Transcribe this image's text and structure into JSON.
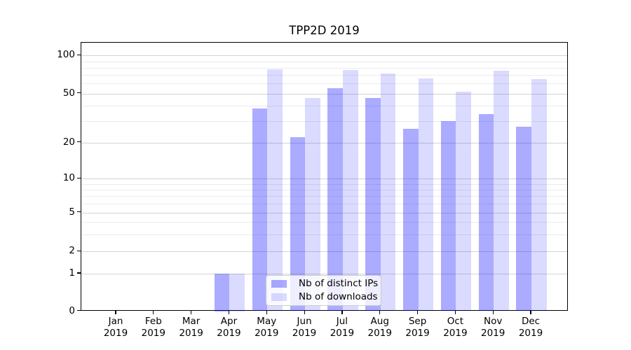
{
  "chart_data": {
    "type": "bar",
    "title": "TPP2D 2019",
    "months": [
      "Jan",
      "Feb",
      "Mar",
      "Apr",
      "May",
      "Jun",
      "Jul",
      "Aug",
      "Sep",
      "Oct",
      "Nov",
      "Dec"
    ],
    "year_label": "2019",
    "series": [
      {
        "name": "Nb of distinct IPs",
        "color": "#0000ff",
        "opacity": 0.33,
        "values": [
          0,
          0,
          0,
          1,
          38,
          22,
          55,
          46,
          26,
          30,
          34,
          27
        ]
      },
      {
        "name": "Nb of downloads",
        "color": "#0000ff",
        "opacity": 0.14,
        "values": [
          0,
          0,
          0,
          1,
          78,
          46,
          77,
          72,
          66,
          52,
          76,
          65
        ]
      }
    ],
    "yscale": "symlog (linear below 1, log above)",
    "yticks": [
      0,
      1,
      2,
      5,
      10,
      20,
      50,
      100
    ],
    "ylim": [
      0,
      127
    ],
    "xlabel": "",
    "ylabel": "",
    "grid": true,
    "legend_position": "lower center"
  }
}
